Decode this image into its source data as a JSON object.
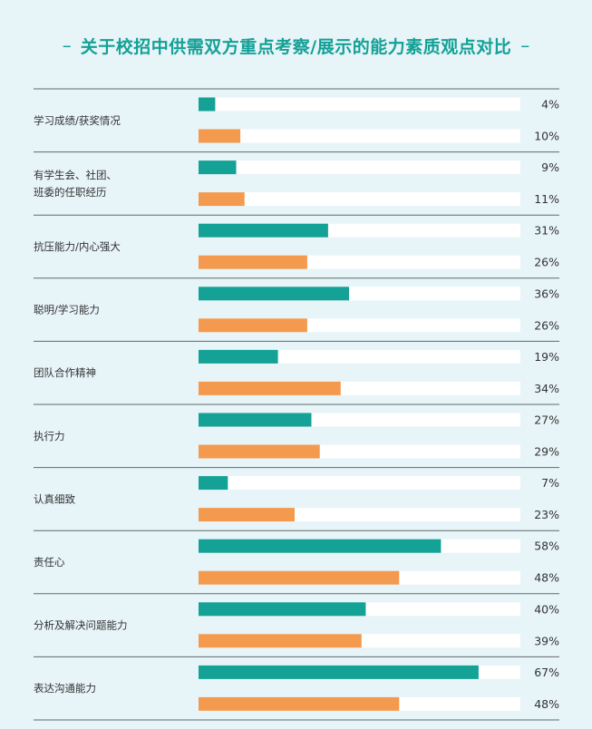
{
  "title": "关于校招中供需双方重点考察/展示的能力素质观点对比",
  "title_dash_left": "–",
  "title_dash_right": "–",
  "colors": {
    "background": "#e7f4f8",
    "teal": "#14a196",
    "orange": "#f39a4f",
    "track": "#ffffff",
    "divider": "#5f6b6e"
  },
  "chart_data": {
    "type": "bar",
    "orientation": "horizontal",
    "title": "关于校招中供需双方重点考察/展示的能力素质观点对比",
    "categories": [
      [
        "学习成绩/获奖情况"
      ],
      [
        "有学生会、社团、",
        "班委的任职经历"
      ],
      [
        "抗压能力/内心强大"
      ],
      [
        "聪明/学习能力"
      ],
      [
        "团队合作精神"
      ],
      [
        "执行力"
      ],
      [
        "认真细致"
      ],
      [
        "责任心"
      ],
      [
        "分析及解决问题能力"
      ],
      [
        "表达沟通能力"
      ]
    ],
    "series": [
      {
        "color": "#14a196",
        "values": [
          4,
          9,
          31,
          36,
          19,
          27,
          7,
          58,
          40,
          67
        ],
        "labels": [
          "4%",
          "9%",
          "31%",
          "36%",
          "19%",
          "27%",
          "7%",
          "58%",
          "40%",
          "67%"
        ]
      },
      {
        "color": "#f39a4f",
        "values": [
          10,
          11,
          26,
          26,
          34,
          29,
          23,
          48,
          39,
          48
        ],
        "labels": [
          "10%",
          "11%",
          "26%",
          "26%",
          "34%",
          "29%",
          "23%",
          "48%",
          "39%",
          "48%"
        ]
      }
    ],
    "xlim": [
      0,
      77
    ],
    "grid": false,
    "legend": "none"
  }
}
